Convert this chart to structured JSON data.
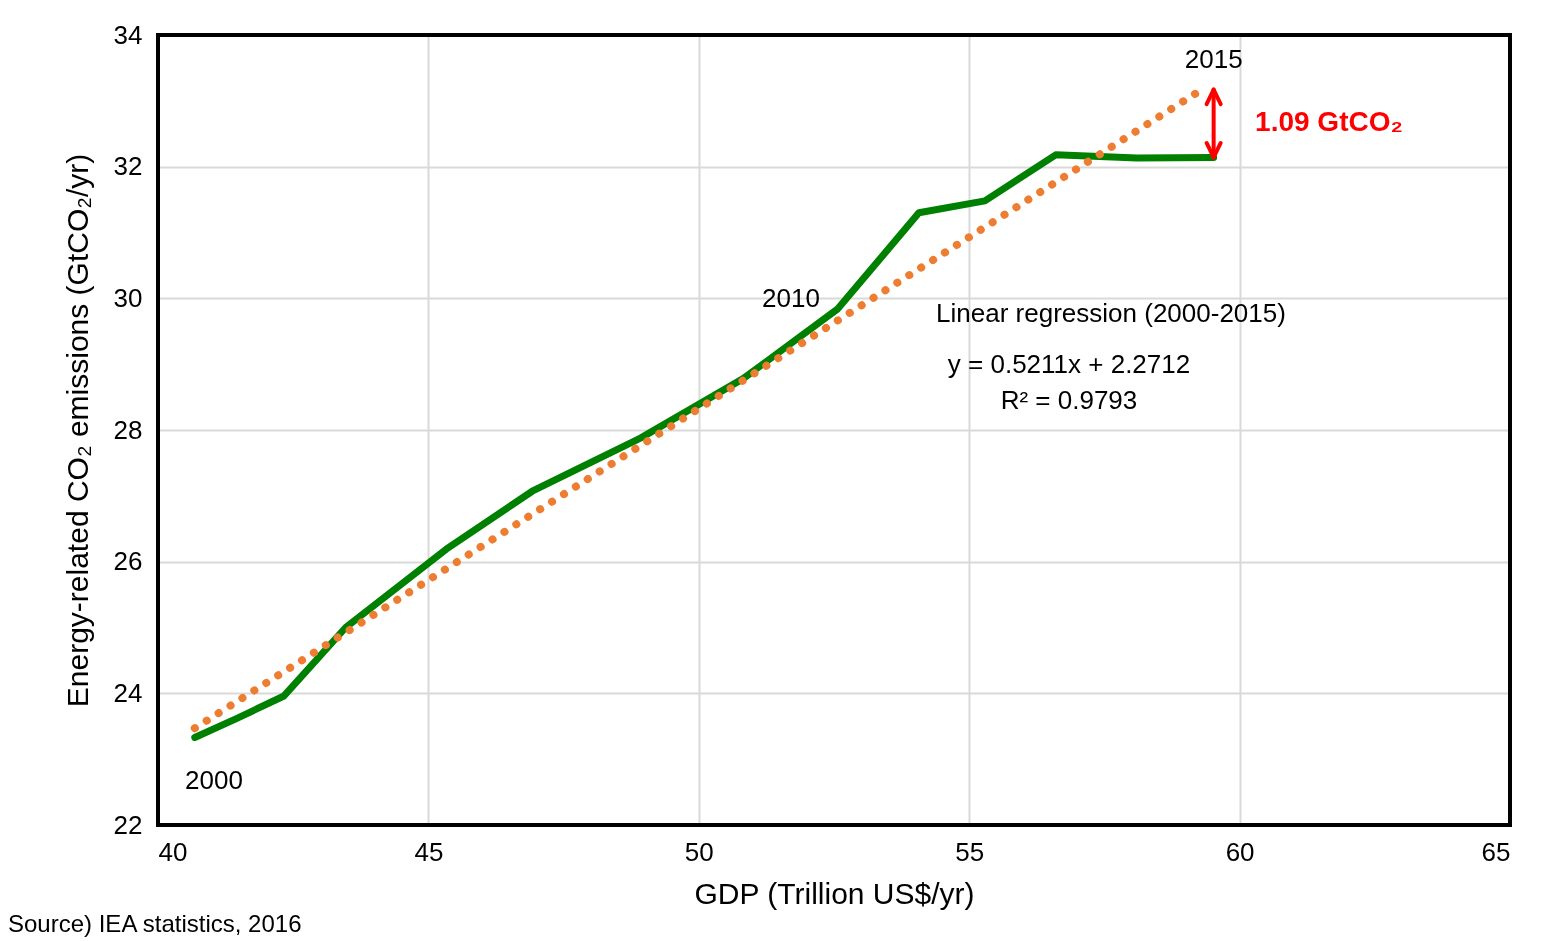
{
  "chart_data": {
    "type": "line",
    "xlabel": "GDP (Trillion US$/yr)",
    "ylabel": "Energy-related CO₂ emissions (GtCO₂/yr)",
    "x": [
      40.68,
      41.46,
      42.33,
      43.47,
      45.33,
      46.92,
      48.93,
      50.82,
      52.57,
      54.07,
      55.29,
      56.6,
      58.1,
      59.52
    ],
    "series": [
      {
        "color": "#008000",
        "line_style": "solid",
        "values": [
          23.33,
          23.62,
          23.96,
          25.0,
          26.19,
          27.07,
          27.88,
          28.78,
          29.84,
          31.3,
          31.48,
          32.18,
          32.13,
          32.14
        ]
      },
      {
        "type": "line",
        "color": "#ed7d31",
        "line_style": "dotted",
        "x": [
          40.68,
          59.3
        ],
        "values": [
          23.47,
          33.17
        ]
      }
    ],
    "xlim": [
      40,
      65
    ],
    "xticks": [
      40,
      45,
      50,
      55,
      60,
      65
    ],
    "ylim": [
      22,
      34
    ],
    "yticks": [
      22,
      24,
      26,
      28,
      30,
      32,
      34
    ],
    "grid": true,
    "annotations": [
      "2000",
      "2010",
      {
        "text": "2015",
        "x": 59.3,
        "y": 33.17
      },
      "Linear regression (2000-2015)",
      "y = 0.5211x + 2.2712",
      "R² = 0.9793",
      "1.09 GtCO₂",
      "Source) IEA statistics, 2016"
    ]
  }
}
